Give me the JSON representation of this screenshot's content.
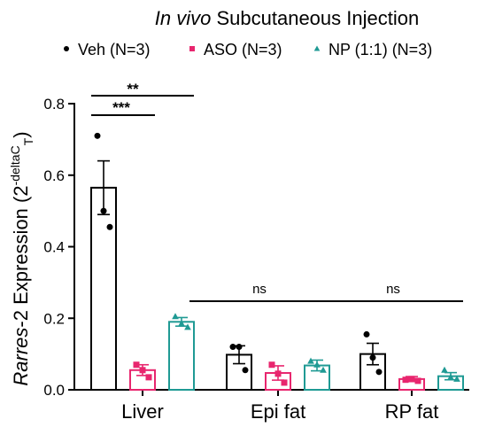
{
  "chart_data": {
    "type": "bar",
    "title": {
      "italic_part": "In vivo",
      "rest": " Subcutaneous Injection"
    },
    "ylabel": {
      "italic_part": "Rarres",
      "rest": "-2 Expression (2",
      "sup": "-deltaC",
      "sub": "T",
      "close": ")"
    },
    "ylim": [
      0,
      0.8
    ],
    "yticks": [
      "0.0",
      "0.2",
      "0.4",
      "0.6",
      "0.8"
    ],
    "ytick_values": [
      0,
      0.2,
      0.4,
      0.6,
      0.8
    ],
    "categories": [
      "Liver",
      "Epi fat",
      "RP fat"
    ],
    "series": [
      {
        "name": "Veh (N=3)",
        "color": "#000000",
        "marker": "circle",
        "values": [
          0.565,
          0.098,
          0.1
        ],
        "sem": [
          0.075,
          0.025,
          0.03
        ],
        "points": [
          [
            0.71,
            0.5,
            0.455
          ],
          [
            0.12,
            0.12,
            0.055
          ],
          [
            0.155,
            0.09,
            0.05
          ]
        ]
      },
      {
        "name": "ASO (N=3)",
        "color": "#e8266e",
        "marker": "square",
        "values": [
          0.055,
          0.047,
          0.03
        ],
        "sem": [
          0.015,
          0.02,
          0.007
        ],
        "points": [
          [
            0.07,
            0.055,
            0.035
          ],
          [
            0.07,
            0.045,
            0.02
          ],
          [
            0.028,
            0.03,
            0.025
          ]
        ]
      },
      {
        "name": "NP (1:1) (N=3)",
        "color": "#1f9a94",
        "marker": "triangle",
        "values": [
          0.19,
          0.068,
          0.038
        ],
        "sem": [
          0.012,
          0.015,
          0.01
        ],
        "points": [
          [
            0.205,
            0.185,
            0.175
          ],
          [
            0.08,
            0.07,
            0.055
          ],
          [
            0.055,
            0.035,
            0.03
          ]
        ]
      }
    ],
    "annotations": [
      {
        "category": "Liver",
        "from": 0,
        "to": 1,
        "label": "***"
      },
      {
        "category": "Liver",
        "from": 0,
        "to": 2,
        "label": "**"
      },
      {
        "category": "Epi fat",
        "from": 0,
        "to": 2,
        "label": "ns"
      },
      {
        "category": "RP fat",
        "from": 0,
        "to": 2,
        "label": "ns"
      }
    ],
    "legend_position": "top"
  }
}
